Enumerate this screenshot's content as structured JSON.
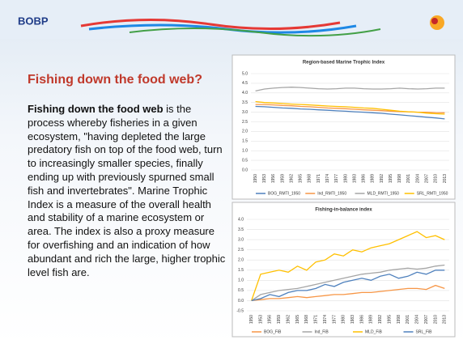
{
  "header": {
    "logo": "BOBP"
  },
  "slide": {
    "title": "Fishing down the food web?",
    "body_bold": "Fishing down the food web",
    "body_rest": " is the process whereby fisheries in a given ecosystem, \"having depleted the large predatory fish on top of the food web, turn to increasingly smaller species, finally ending up with previously spurned small fish and invertebrates\". Marine Trophic Index is a measure of the overall health and stability of a marine ecosystem or area. The index is also a proxy measure for overfishing and an indication of how abundant and rich the large, higher trophic level fish are."
  },
  "chart_data": [
    {
      "type": "line",
      "title": "Region-based Marine Trophic Index",
      "categories": [
        "1950",
        "1953",
        "1956",
        "1959",
        "1962",
        "1965",
        "1968",
        "1971",
        "1974",
        "1977",
        "1980",
        "1983",
        "1986",
        "1989",
        "1992",
        "1995",
        "1998",
        "2001",
        "2004",
        "2007",
        "2010",
        "2013"
      ],
      "ylim": [
        0,
        5
      ],
      "yticks": [
        {
          "value": 0,
          "label": "0.0"
        },
        0.5,
        {
          "value": 1,
          "label": "1.0"
        },
        1.5,
        {
          "value": 2,
          "label": "2.0"
        },
        2.5,
        {
          "value": 3,
          "label": "3.0"
        },
        3.5,
        {
          "value": 4,
          "label": "4.0"
        },
        4.5,
        {
          "value": 5,
          "label": "5.0"
        }
      ],
      "grid": true,
      "series": [
        {
          "name": "BOG_RMTI_1950",
          "color": "#4f81bd",
          "values": [
            3.3,
            3.28,
            3.25,
            3.22,
            3.2,
            3.17,
            3.15,
            3.12,
            3.1,
            3.07,
            3.05,
            3.02,
            3.0,
            2.97,
            2.94,
            2.9,
            2.86,
            2.82,
            2.78,
            2.74,
            2.7,
            2.65
          ]
        },
        {
          "name": "Ind_RMTI_1950",
          "color": "#f79646",
          "values": [
            3.4,
            3.4,
            3.38,
            3.35,
            3.33,
            3.3,
            3.28,
            3.25,
            3.22,
            3.2,
            3.18,
            3.15,
            3.12,
            3.1,
            3.08,
            3.05,
            3.03,
            3.02,
            3.0,
            3.0,
            2.98,
            2.97
          ]
        },
        {
          "name": "MLD_RMTI_1950",
          "color": "#a5a5a5",
          "values": [
            4.1,
            4.2,
            4.25,
            4.28,
            4.3,
            4.28,
            4.25,
            4.22,
            4.2,
            4.22,
            4.25,
            4.25,
            4.22,
            4.2,
            4.2,
            4.22,
            4.25,
            4.22,
            4.2,
            4.22,
            4.25,
            4.25
          ]
        },
        {
          "name": "SRL_RMTI_1950",
          "color": "#ffc000",
          "values": [
            3.55,
            3.5,
            3.48,
            3.45,
            3.42,
            3.4,
            3.38,
            3.35,
            3.32,
            3.3,
            3.28,
            3.25,
            3.22,
            3.2,
            3.15,
            3.1,
            3.05,
            3.02,
            3.0,
            2.95,
            2.92,
            2.9
          ]
        }
      ]
    },
    {
      "type": "line",
      "title": "Fishing-in-balance index",
      "categories": [
        "1950",
        "1953",
        "1956",
        "1959",
        "1962",
        "1965",
        "1968",
        "1971",
        "1974",
        "1977",
        "1980",
        "1983",
        "1986",
        "1989",
        "1992",
        "1995",
        "1998",
        "2001",
        "2004",
        "2007",
        "2010",
        "2013"
      ],
      "ylim": [
        -0.5,
        4
      ],
      "yticks": [
        -0.5,
        {
          "value": 0,
          "label": "0.0"
        },
        0.5,
        {
          "value": 1,
          "label": "1.0"
        },
        1.5,
        {
          "value": 2,
          "label": "2.0"
        },
        2.5,
        {
          "value": 3,
          "label": "3.0"
        },
        3.5,
        {
          "value": 4,
          "label": "4.0"
        }
      ],
      "grid": true,
      "series": [
        {
          "name": "BOG_FiB",
          "color": "#f79646",
          "values": [
            0,
            0.05,
            0.1,
            0.1,
            0.15,
            0.2,
            0.15,
            0.2,
            0.25,
            0.3,
            0.3,
            0.35,
            0.4,
            0.4,
            0.45,
            0.5,
            0.55,
            0.6,
            0.6,
            0.55,
            0.75,
            0.6
          ]
        },
        {
          "name": "Ind_FiB",
          "color": "#a5a5a5",
          "values": [
            0,
            0.3,
            0.4,
            0.5,
            0.55,
            0.6,
            0.7,
            0.8,
            0.9,
            1.0,
            1.1,
            1.2,
            1.3,
            1.35,
            1.4,
            1.5,
            1.55,
            1.6,
            1.55,
            1.6,
            1.7,
            1.75
          ]
        },
        {
          "name": "MLD_FiB",
          "color": "#ffc000",
          "values": [
            0,
            1.3,
            1.4,
            1.5,
            1.4,
            1.7,
            1.5,
            1.9,
            2.0,
            2.3,
            2.2,
            2.5,
            2.4,
            2.6,
            2.7,
            2.8,
            3.0,
            3.2,
            3.4,
            3.1,
            3.2,
            3.0
          ]
        },
        {
          "name": "SRL_FiB",
          "color": "#4f81bd",
          "values": [
            0,
            0.1,
            0.3,
            0.2,
            0.4,
            0.5,
            0.5,
            0.6,
            0.8,
            0.7,
            0.9,
            1.0,
            1.1,
            1.0,
            1.2,
            1.3,
            1.1,
            1.2,
            1.4,
            1.3,
            1.5,
            1.5
          ]
        }
      ]
    }
  ]
}
